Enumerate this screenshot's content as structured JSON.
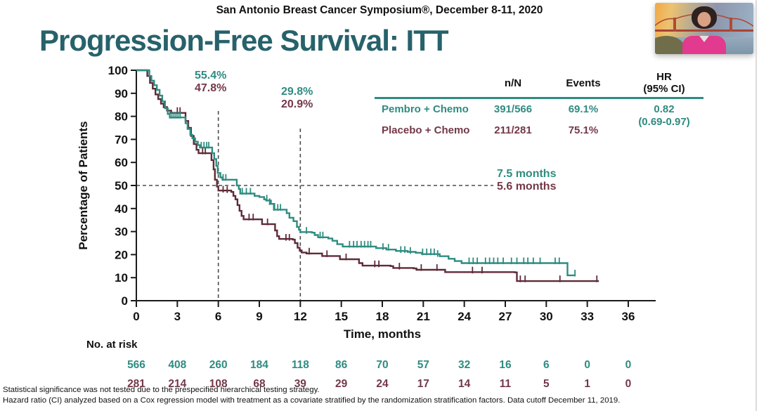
{
  "header": {
    "symposium": "San Antonio Breast Cancer Symposium®, December 8-11, 2020"
  },
  "title": {
    "text": "Progression-Free Survival: ITT",
    "color": "#27626b"
  },
  "presenter_video": {
    "description": "Presenter webcam: woman in pink top in front of Golden Gate Bridge backdrop"
  },
  "stats_table": {
    "headers": {
      "n_n": "n/N",
      "events": "Events",
      "hr_line1": "HR",
      "hr_line2": "(95% CI)"
    },
    "rows": [
      {
        "name": "Pembro + Chemo",
        "n_n": "391/566",
        "events": "69.1%",
        "color": "#2e8c80"
      },
      {
        "name": "Placebo + Chemo",
        "n_n": "211/281",
        "events": "75.1%",
        "color": "#733848"
      }
    ],
    "hr_value": "0.82",
    "hr_ci": "(0.69-0.97)",
    "hr_color": "#2e8c80",
    "rule_color": "#2e8c80"
  },
  "annotations": {
    "month6": {
      "pembro": "55.4%",
      "placebo": "47.8%"
    },
    "month12": {
      "pembro": "29.8%",
      "placebo": "20.9%"
    },
    "median": {
      "pembro": "7.5 months",
      "placebo": "5.6 months"
    }
  },
  "risk_table": {
    "label": "No. at risk",
    "rows": [
      {
        "name": "Pembro + Chemo",
        "color": "#2e8c80",
        "counts": [
          566,
          408,
          260,
          184,
          118,
          86,
          70,
          57,
          32,
          16,
          6,
          0,
          0
        ]
      },
      {
        "name": "Placebo + Chemo",
        "color": "#733848",
        "counts": [
          281,
          214,
          108,
          68,
          39,
          29,
          24,
          17,
          14,
          11,
          5,
          1,
          0
        ]
      }
    ]
  },
  "footnotes": [
    "Statistical significance was not tested due to the prespecified hierarchical testing strategy.",
    "Hazard ratio (CI) analyzed based on a Cox regression model with treatment as a covariate stratified by the randomization stratification factors. Data cutoff December 11, 2019."
  ],
  "chart_data": {
    "type": "line",
    "subtype": "kaplan-meier-step",
    "title": "Progression-Free Survival: ITT",
    "xlabel": "Time, months",
    "ylabel": "Percentage of Patients",
    "xlim": [
      0,
      36
    ],
    "ylim": [
      0,
      100
    ],
    "xticks": [
      0,
      3,
      6,
      9,
      12,
      15,
      18,
      21,
      24,
      27,
      30,
      33,
      36
    ],
    "yticks": [
      0,
      10,
      20,
      30,
      40,
      50,
      60,
      70,
      80,
      90,
      100
    ],
    "grid": false,
    "reference_lines": {
      "horizontal_percent": 50,
      "vertical_months": [
        6,
        12
      ]
    },
    "rates": {
      "month6": {
        "pembro": 55.4,
        "placebo": 47.8
      },
      "month12": {
        "pembro": 29.8,
        "placebo": 20.9
      }
    },
    "median_pfs_months": {
      "pembro": 7.5,
      "placebo": 5.6
    },
    "hazard_ratio": {
      "value": 0.82,
      "ci_low": 0.69,
      "ci_high": 0.97
    },
    "series": [
      {
        "name": "Placebo + Chemo",
        "color": "#5e2b37",
        "points": [
          [
            0,
            100
          ],
          [
            0.65,
            100
          ],
          [
            0.8,
            97.5
          ],
          [
            1.0,
            94.5
          ],
          [
            1.2,
            92
          ],
          [
            1.4,
            89.5
          ],
          [
            1.6,
            87.5
          ],
          [
            1.8,
            85.5
          ],
          [
            2.0,
            84
          ],
          [
            2.25,
            82.5
          ],
          [
            2.55,
            81.5
          ],
          [
            3.45,
            81.5
          ],
          [
            3.6,
            78
          ],
          [
            3.8,
            75
          ],
          [
            4.0,
            71.5
          ],
          [
            4.2,
            68
          ],
          [
            4.4,
            65.5
          ],
          [
            4.55,
            64
          ],
          [
            5.35,
            64
          ],
          [
            5.5,
            61
          ],
          [
            5.65,
            57
          ],
          [
            5.75,
            52.5
          ],
          [
            5.9,
            49.5
          ],
          [
            6.0,
            47.8
          ],
          [
            6.95,
            47.2
          ],
          [
            7.1,
            45.5
          ],
          [
            7.25,
            44
          ],
          [
            7.4,
            41.5
          ],
          [
            7.55,
            39
          ],
          [
            7.7,
            36.8
          ],
          [
            7.85,
            35.3
          ],
          [
            9.05,
            35.3
          ],
          [
            9.2,
            33.2
          ],
          [
            10.0,
            33.2
          ],
          [
            10.15,
            30.5
          ],
          [
            10.3,
            28
          ],
          [
            10.45,
            26.8
          ],
          [
            11.45,
            26.5
          ],
          [
            11.6,
            25
          ],
          [
            11.8,
            23
          ],
          [
            11.95,
            21.8
          ],
          [
            12.1,
            20.9
          ],
          [
            12.45,
            20.5
          ],
          [
            13.45,
            20.5
          ],
          [
            13.6,
            19.4
          ],
          [
            14.75,
            19.4
          ],
          [
            14.9,
            18
          ],
          [
            16.1,
            18
          ],
          [
            16.3,
            16.3
          ],
          [
            16.55,
            15.2
          ],
          [
            18.6,
            15
          ],
          [
            18.8,
            14.2
          ],
          [
            20.3,
            14
          ],
          [
            20.5,
            13.4
          ],
          [
            22.4,
            13.4
          ],
          [
            22.6,
            12.4
          ],
          [
            27.7,
            12.3
          ],
          [
            27.85,
            8.5
          ],
          [
            33.85,
            8.5
          ]
        ],
        "censors": [
          [
            2.05,
            84
          ],
          [
            3.0,
            81.5
          ],
          [
            3.2,
            81.5
          ],
          [
            4.85,
            64
          ],
          [
            5.05,
            64
          ],
          [
            6.35,
            47.4
          ],
          [
            6.65,
            47.2
          ],
          [
            8.25,
            35.3
          ],
          [
            8.55,
            35.3
          ],
          [
            9.6,
            33.2
          ],
          [
            10.95,
            26.5
          ],
          [
            11.2,
            26.5
          ],
          [
            12.65,
            20.5
          ],
          [
            13.95,
            19.4
          ],
          [
            15.35,
            18
          ],
          [
            17.45,
            15
          ],
          [
            17.75,
            15
          ],
          [
            19.25,
            14
          ],
          [
            20.85,
            13.4
          ],
          [
            22.0,
            13.4
          ],
          [
            24.6,
            12.3
          ],
          [
            25.3,
            12.3
          ],
          [
            28.1,
            8.5
          ],
          [
            28.45,
            8.5
          ],
          [
            31.0,
            8.5
          ],
          [
            33.7,
            8.5
          ]
        ]
      },
      {
        "name": "Pembro + Chemo",
        "color": "#2e8c80",
        "points": [
          [
            0,
            100
          ],
          [
            0.8,
            100
          ],
          [
            0.95,
            97.5
          ],
          [
            1.1,
            95.5
          ],
          [
            1.3,
            93.5
          ],
          [
            1.5,
            91.5
          ],
          [
            1.7,
            89
          ],
          [
            1.9,
            86.5
          ],
          [
            2.1,
            83.5
          ],
          [
            2.3,
            81
          ],
          [
            2.45,
            79.5
          ],
          [
            3.45,
            79.5
          ],
          [
            3.6,
            77
          ],
          [
            3.75,
            74.5
          ],
          [
            3.95,
            72
          ],
          [
            4.1,
            70.5
          ],
          [
            4.3,
            69
          ],
          [
            4.5,
            67.5
          ],
          [
            4.65,
            66.5
          ],
          [
            5.45,
            66.5
          ],
          [
            5.55,
            64
          ],
          [
            5.7,
            61.5
          ],
          [
            5.85,
            58.5
          ],
          [
            5.95,
            55.4
          ],
          [
            6.15,
            53.5
          ],
          [
            6.3,
            52.5
          ],
          [
            7.2,
            52.5
          ],
          [
            7.35,
            50
          ],
          [
            7.5,
            48.5
          ],
          [
            7.6,
            46.5
          ],
          [
            8.55,
            46.5
          ],
          [
            8.65,
            45.5
          ],
          [
            9.0,
            45
          ],
          [
            9.35,
            44
          ],
          [
            9.5,
            43.5
          ],
          [
            9.85,
            42
          ],
          [
            10.1,
            39.5
          ],
          [
            10.85,
            39.5
          ],
          [
            11.0,
            38
          ],
          [
            11.2,
            36
          ],
          [
            11.5,
            34.5
          ],
          [
            11.75,
            32
          ],
          [
            11.9,
            30.8
          ],
          [
            12.0,
            29.8
          ],
          [
            12.85,
            29.5
          ],
          [
            13.05,
            28.5
          ],
          [
            13.3,
            27.5
          ],
          [
            14.05,
            27
          ],
          [
            14.35,
            26
          ],
          [
            14.7,
            24.5
          ],
          [
            15.1,
            23.5
          ],
          [
            17.35,
            23.5
          ],
          [
            17.55,
            22.8
          ],
          [
            18.3,
            22.2
          ],
          [
            19.0,
            21.6
          ],
          [
            19.85,
            21.2
          ],
          [
            20.45,
            20.8
          ],
          [
            20.9,
            20.2
          ],
          [
            21.95,
            20.2
          ],
          [
            22.2,
            19.3
          ],
          [
            22.85,
            18.2
          ],
          [
            23.3,
            17.2
          ],
          [
            23.8,
            16.3
          ],
          [
            31.45,
            16.3
          ],
          [
            31.55,
            11
          ],
          [
            32.15,
            11
          ]
        ],
        "censors": [
          [
            2.45,
            79.5
          ],
          [
            2.6,
            79.5
          ],
          [
            2.75,
            79.5
          ],
          [
            2.9,
            79.5
          ],
          [
            3.05,
            79.5
          ],
          [
            3.2,
            79.5
          ],
          [
            4.75,
            66.5
          ],
          [
            4.95,
            66.5
          ],
          [
            5.15,
            66.5
          ],
          [
            5.3,
            66.5
          ],
          [
            6.35,
            52.5
          ],
          [
            6.55,
            52.5
          ],
          [
            7.75,
            46.5
          ],
          [
            8.05,
            46.5
          ],
          [
            8.35,
            46.5
          ],
          [
            9.55,
            43.5
          ],
          [
            9.75,
            42
          ],
          [
            10.05,
            39.5
          ],
          [
            10.35,
            39.5
          ],
          [
            10.55,
            39.5
          ],
          [
            12.45,
            29.5
          ],
          [
            13.45,
            27.5
          ],
          [
            13.65,
            27.5
          ],
          [
            15.6,
            23.5
          ],
          [
            15.9,
            23.5
          ],
          [
            16.15,
            23.5
          ],
          [
            16.45,
            23.5
          ],
          [
            16.7,
            23.5
          ],
          [
            16.95,
            23.5
          ],
          [
            17.15,
            23.5
          ],
          [
            18.05,
            22.5
          ],
          [
            18.45,
            22.2
          ],
          [
            19.35,
            21.2
          ],
          [
            19.65,
            21.2
          ],
          [
            20.05,
            20.8
          ],
          [
            20.95,
            20.2
          ],
          [
            21.25,
            20.2
          ],
          [
            21.55,
            20.2
          ],
          [
            21.8,
            20.2
          ],
          [
            22.05,
            19.5
          ],
          [
            24.35,
            16.3
          ],
          [
            24.65,
            16.3
          ],
          [
            24.95,
            16.3
          ],
          [
            25.55,
            16.3
          ],
          [
            25.85,
            16.3
          ],
          [
            26.15,
            16.3
          ],
          [
            26.45,
            16.3
          ],
          [
            26.85,
            16.3
          ],
          [
            27.45,
            16.3
          ],
          [
            27.85,
            16.3
          ],
          [
            28.35,
            16.3
          ],
          [
            28.65,
            16.3
          ],
          [
            29.05,
            16.3
          ],
          [
            29.55,
            16.3
          ],
          [
            30.65,
            16.3
          ],
          [
            30.95,
            16.3
          ],
          [
            32.1,
            11
          ]
        ]
      }
    ],
    "legend_position": "table-top-right"
  }
}
